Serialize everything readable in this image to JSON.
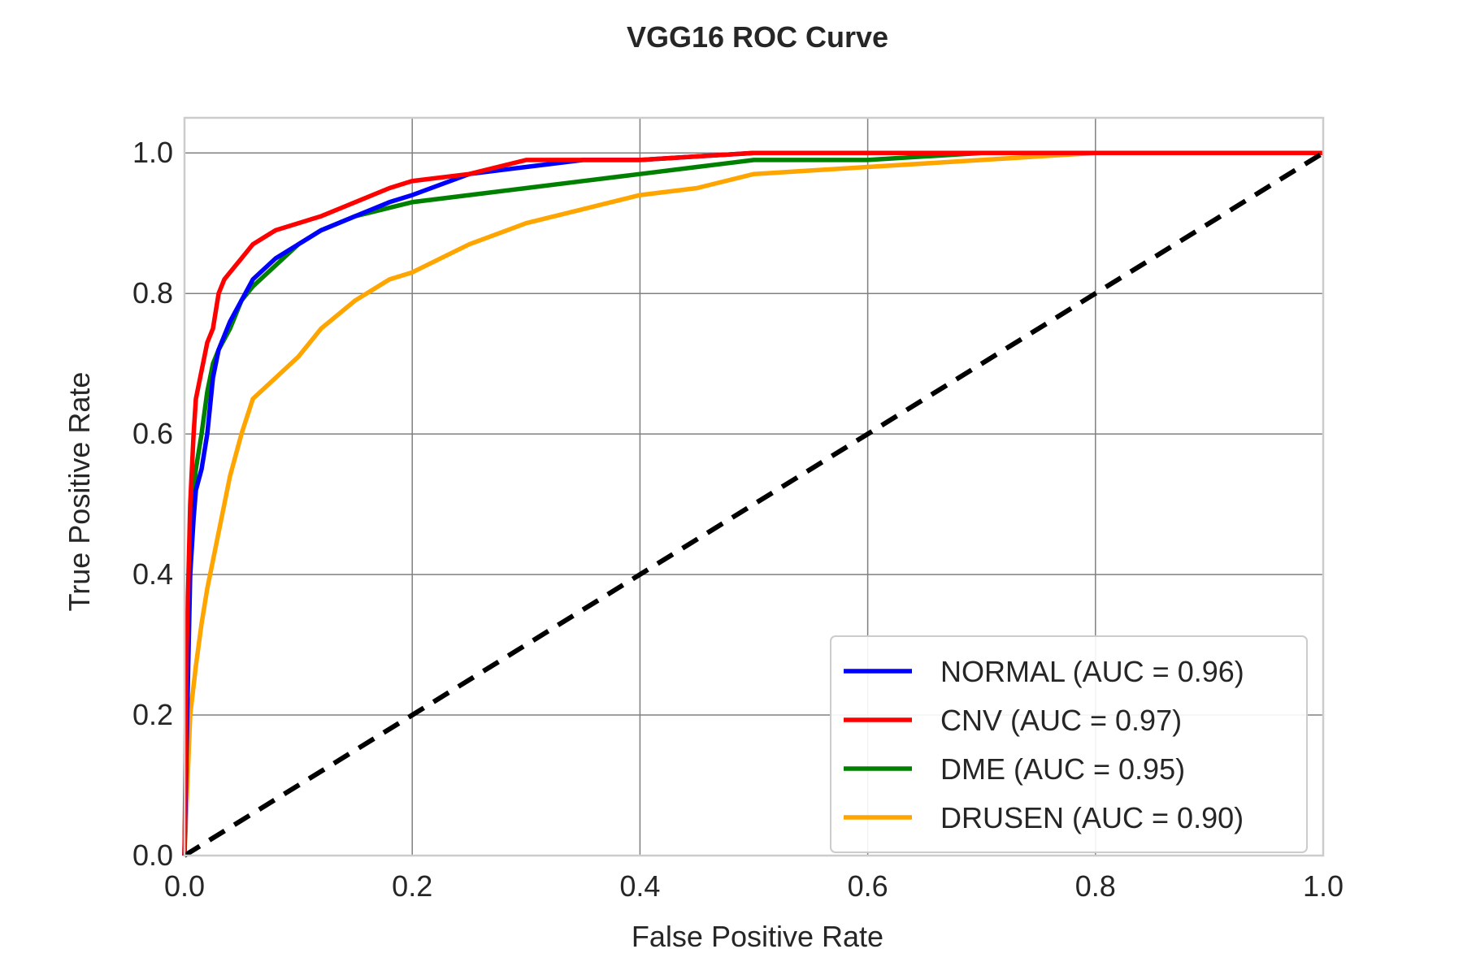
{
  "chart_data": {
    "type": "line",
    "title": "VGG16 ROC Curve",
    "xlabel": "False Positive Rate",
    "ylabel": "True Positive Rate",
    "xlim": [
      0.0,
      1.0
    ],
    "ylim": [
      0.0,
      1.05
    ],
    "xticks": [
      "0.0",
      "0.2",
      "0.4",
      "0.6",
      "0.8",
      "1.0"
    ],
    "yticks": [
      "0.0",
      "0.2",
      "0.4",
      "0.6",
      "0.8",
      "1.0"
    ],
    "grid": true,
    "legend_position": "lower-right",
    "series": [
      {
        "name": "NORMAL (AUC = 0.96)",
        "color": "#0000ff",
        "x": [
          0.0,
          0.003,
          0.005,
          0.008,
          0.01,
          0.015,
          0.02,
          0.025,
          0.03,
          0.04,
          0.05,
          0.06,
          0.08,
          0.1,
          0.12,
          0.15,
          0.18,
          0.2,
          0.25,
          0.3,
          0.35,
          0.4,
          0.5,
          0.6,
          0.8,
          1.0
        ],
        "y": [
          0.0,
          0.25,
          0.4,
          0.48,
          0.52,
          0.55,
          0.6,
          0.68,
          0.72,
          0.76,
          0.79,
          0.82,
          0.85,
          0.87,
          0.89,
          0.91,
          0.93,
          0.94,
          0.97,
          0.98,
          0.99,
          0.99,
          1.0,
          1.0,
          1.0,
          1.0
        ]
      },
      {
        "name": "CNV (AUC = 0.97)",
        "color": "#ff0000",
        "x": [
          0.0,
          0.002,
          0.005,
          0.008,
          0.01,
          0.015,
          0.02,
          0.025,
          0.03,
          0.035,
          0.04,
          0.05,
          0.06,
          0.07,
          0.08,
          0.1,
          0.12,
          0.15,
          0.18,
          0.2,
          0.25,
          0.3,
          0.4,
          0.5,
          0.6,
          0.8,
          1.0
        ],
        "y": [
          0.0,
          0.3,
          0.5,
          0.6,
          0.65,
          0.69,
          0.73,
          0.75,
          0.8,
          0.82,
          0.83,
          0.85,
          0.87,
          0.88,
          0.89,
          0.9,
          0.91,
          0.93,
          0.95,
          0.96,
          0.97,
          0.99,
          0.99,
          1.0,
          1.0,
          1.0,
          1.0
        ]
      },
      {
        "name": "DME (AUC = 0.95)",
        "color": "#008000",
        "x": [
          0.0,
          0.003,
          0.005,
          0.008,
          0.01,
          0.015,
          0.02,
          0.025,
          0.03,
          0.04,
          0.05,
          0.06,
          0.08,
          0.1,
          0.12,
          0.15,
          0.2,
          0.25,
          0.3,
          0.35,
          0.4,
          0.45,
          0.5,
          0.6,
          0.7,
          0.8,
          1.0
        ],
        "y": [
          0.0,
          0.3,
          0.45,
          0.52,
          0.55,
          0.6,
          0.66,
          0.7,
          0.72,
          0.75,
          0.79,
          0.81,
          0.84,
          0.87,
          0.89,
          0.91,
          0.93,
          0.94,
          0.95,
          0.96,
          0.97,
          0.98,
          0.99,
          0.99,
          1.0,
          1.0,
          1.0
        ]
      },
      {
        "name": "DRUSEN (AUC = 0.90)",
        "color": "#ffa500",
        "x": [
          0.0,
          0.003,
          0.005,
          0.01,
          0.015,
          0.02,
          0.03,
          0.04,
          0.05,
          0.06,
          0.08,
          0.1,
          0.12,
          0.15,
          0.18,
          0.2,
          0.25,
          0.3,
          0.35,
          0.4,
          0.45,
          0.5,
          0.6,
          0.7,
          0.8,
          0.9,
          1.0
        ],
        "y": [
          0.0,
          0.12,
          0.2,
          0.27,
          0.33,
          0.38,
          0.46,
          0.54,
          0.6,
          0.65,
          0.68,
          0.71,
          0.75,
          0.79,
          0.82,
          0.83,
          0.87,
          0.9,
          0.92,
          0.94,
          0.95,
          0.97,
          0.98,
          0.99,
          1.0,
          1.0,
          1.0
        ]
      },
      {
        "name": "",
        "color": "#000000",
        "style": "dashed",
        "x": [
          0.0,
          1.0
        ],
        "y": [
          0.0,
          1.0
        ]
      }
    ]
  }
}
